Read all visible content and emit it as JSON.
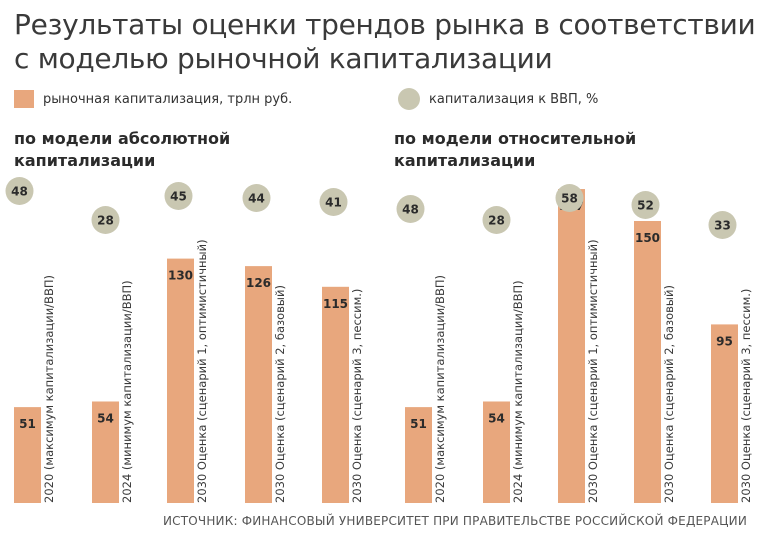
{
  "title": "Результаты оценки трендов рынка в соответствии с моделью рыночной капитализации",
  "legend": {
    "bar_label": "рыночная капитализация, трлн руб.",
    "circle_label": "капитализация к ВВП, %"
  },
  "source": "ИСТОЧНИК: ФИНАНСОВЫЙ УНИВЕРСИТЕТ ПРИ ПРАВИТЕЛЬСТВЕ РОССИЙСКОЙ ФЕДЕРАЦИИ",
  "colors": {
    "bar": "#e8a77d",
    "circle": "#c9c7b1"
  },
  "chart_data": [
    {
      "type": "bar",
      "title": "по модели абсолютной капитализации",
      "categories": [
        "2020 (максимум капитализации/ВВП)",
        "2024 (минимум капитализации/ВВП)",
        "2030 Оценка (сценарий 1, оптимистичный)",
        "2030 Оценка (сценарий 2, базовый)",
        "2030 Оценка (сценарий 3, пессим.)"
      ],
      "series": [
        {
          "name": "рыночная капитализация, трлн руб.",
          "values": [
            51,
            54,
            130,
            126,
            115
          ]
        },
        {
          "name": "капитализация к ВВП, %",
          "values": [
            48,
            28,
            45,
            44,
            41
          ]
        }
      ]
    },
    {
      "type": "bar",
      "title": "по модели относительной капитализации",
      "categories": [
        "2020 (максимум капитализации/ВВП)",
        "2024 (минимум капитализации/ВВП)",
        "2030 Оценка (сценарий 1, оптимистичный)",
        "2030 Оценка (сценарий 2, базовый)",
        "2030 Оценка (сценарий 3, пессим.)"
      ],
      "series": [
        {
          "name": "рыночная капитализация, трлн руб.",
          "values": [
            51,
            54,
            167,
            150,
            95
          ]
        },
        {
          "name": "капитализация к ВВП, %",
          "values": [
            48,
            28,
            58,
            52,
            33
          ]
        }
      ]
    }
  ]
}
